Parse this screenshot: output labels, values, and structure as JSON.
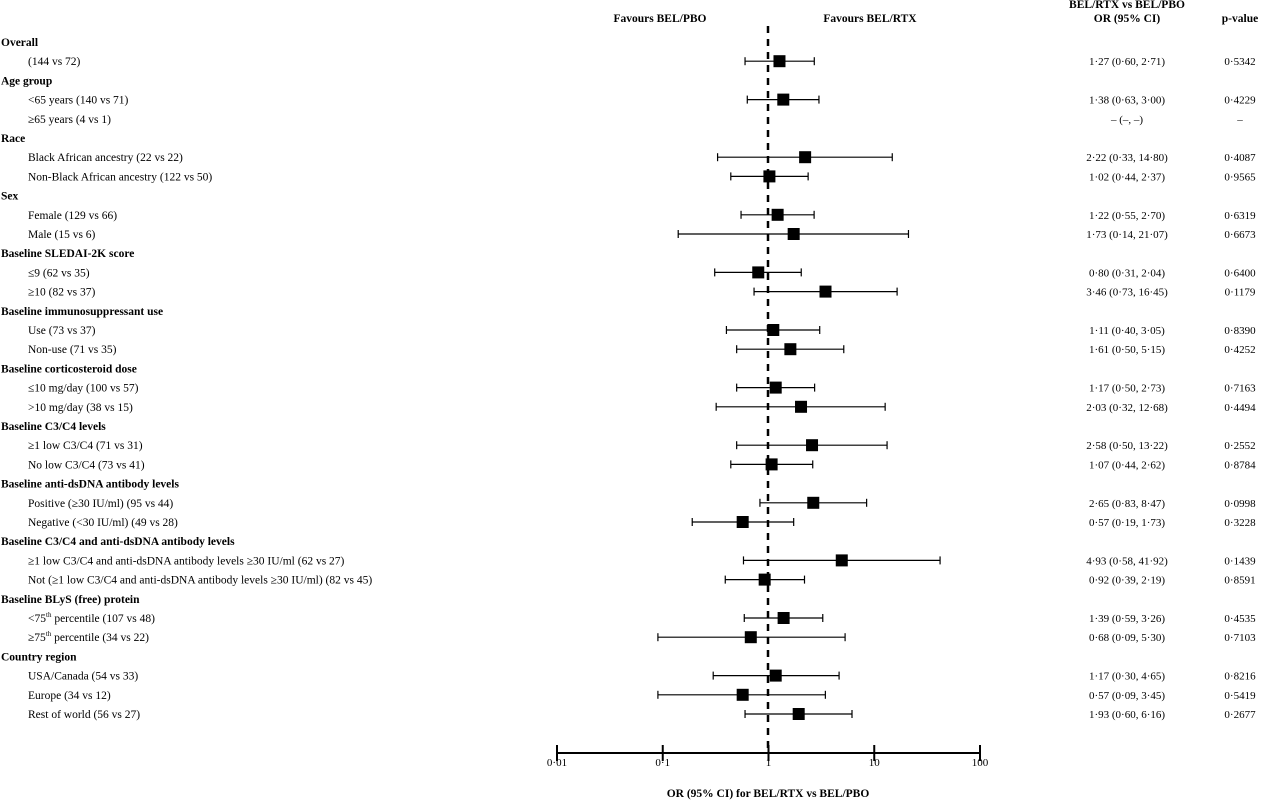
{
  "chart_data": {
    "type": "forest",
    "scale": "log",
    "xlim": [
      0.01,
      100
    ],
    "reference_value": 1,
    "header": {
      "favours_left": "Favours BEL/PBO",
      "favours_right": "Favours BEL/RTX",
      "or_col_line1": "BEL/RTX vs BEL/PBO",
      "or_col_line2": "OR (95% CI)",
      "p_col": "p-value"
    },
    "xticks": [
      0.01,
      0.1,
      1,
      10,
      100
    ],
    "xtick_labels": [
      "0·01",
      "0·1",
      "1",
      "10",
      "100"
    ],
    "xlabel": "OR (95% CI) for BEL/RTX vs BEL/PBO",
    "rows": [
      {
        "kind": "header",
        "label": "Overall"
      },
      {
        "kind": "item",
        "label": "(144 vs 72)",
        "or": 1.27,
        "lo": 0.6,
        "hi": 2.71,
        "or_text": "1·27 (0·60, 2·71)",
        "p": "0·5342"
      },
      {
        "kind": "header",
        "label": "Age group"
      },
      {
        "kind": "item",
        "label": "<65 years (140 vs 71)",
        "or": 1.38,
        "lo": 0.63,
        "hi": 3.0,
        "or_text": "1·38 (0·63, 3·00)",
        "p": "0·4229"
      },
      {
        "kind": "item",
        "label": "≥65 years (4 vs 1)",
        "or": null,
        "lo": null,
        "hi": null,
        "or_text": "– (–, –)",
        "p": "–"
      },
      {
        "kind": "header",
        "label": "Race"
      },
      {
        "kind": "item",
        "label": "Black African ancestry (22 vs 22)",
        "or": 2.22,
        "lo": 0.33,
        "hi": 14.8,
        "or_text": "2·22 (0·33, 14·80)",
        "p": "0·4087"
      },
      {
        "kind": "item",
        "label": "Non-Black African ancestry (122 vs 50)",
        "or": 1.02,
        "lo": 0.44,
        "hi": 2.37,
        "or_text": "1·02 (0·44, 2·37)",
        "p": "0·9565"
      },
      {
        "kind": "header",
        "label": "Sex"
      },
      {
        "kind": "item",
        "label": "Female (129 vs 66)",
        "or": 1.22,
        "lo": 0.55,
        "hi": 2.7,
        "or_text": "1·22 (0·55, 2·70)",
        "p": "0·6319"
      },
      {
        "kind": "item",
        "label": "Male (15 vs 6)",
        "or": 1.73,
        "lo": 0.14,
        "hi": 21.07,
        "or_text": "1·73 (0·14, 21·07)",
        "p": "0·6673"
      },
      {
        "kind": "header",
        "label": "Baseline SLEDAI-2K score"
      },
      {
        "kind": "item",
        "label": "≤9 (62 vs 35)",
        "or": 0.8,
        "lo": 0.31,
        "hi": 2.04,
        "or_text": "0·80 (0·31, 2·04)",
        "p": "0·6400"
      },
      {
        "kind": "item",
        "label": "≥10 (82 vs 37)",
        "or": 3.46,
        "lo": 0.73,
        "hi": 16.45,
        "or_text": "3·46 (0·73, 16·45)",
        "p": "0·1179"
      },
      {
        "kind": "header",
        "label": "Baseline immunosuppressant use"
      },
      {
        "kind": "item",
        "label": "Use (73 vs 37)",
        "or": 1.11,
        "lo": 0.4,
        "hi": 3.05,
        "or_text": "1·11 (0·40, 3·05)",
        "p": "0·8390"
      },
      {
        "kind": "item",
        "label": "Non-use (71 vs 35)",
        "or": 1.61,
        "lo": 0.5,
        "hi": 5.15,
        "or_text": "1·61 (0·50, 5·15)",
        "p": "0·4252"
      },
      {
        "kind": "header",
        "label": "Baseline corticosteroid dose"
      },
      {
        "kind": "item",
        "label": "≤10 mg/day (100 vs 57)",
        "or": 1.17,
        "lo": 0.5,
        "hi": 2.73,
        "or_text": "1·17 (0·50, 2·73)",
        "p": "0·7163"
      },
      {
        "kind": "item",
        "label": ">10 mg/day (38 vs 15)",
        "or": 2.03,
        "lo": 0.32,
        "hi": 12.68,
        "or_text": "2·03 (0·32, 12·68)",
        "p": "0·4494"
      },
      {
        "kind": "header",
        "label": "Baseline C3/C4 levels"
      },
      {
        "kind": "item",
        "label": " ≥1 low C3/C4 (71 vs 31)",
        "or": 2.58,
        "lo": 0.5,
        "hi": 13.22,
        "or_text": "2·58 (0·50, 13·22)",
        "p": "0·2552"
      },
      {
        "kind": "item",
        "label": "No low C3/C4 (73 vs 41)",
        "or": 1.07,
        "lo": 0.44,
        "hi": 2.62,
        "or_text": "1·07 (0·44, 2·62)",
        "p": "0·8784"
      },
      {
        "kind": "header",
        "label": "Baseline anti-dsDNA antibody levels"
      },
      {
        "kind": "item",
        "label": "Positive (≥30 IU/ml) (95 vs 44)",
        "or": 2.65,
        "lo": 0.83,
        "hi": 8.47,
        "or_text": "2·65 (0·83, 8·47)",
        "p": "0·0998"
      },
      {
        "kind": "item",
        "label": "Negative (<30 IU/ml) (49 vs 28)",
        "or": 0.57,
        "lo": 0.19,
        "hi": 1.73,
        "or_text": "0·57 (0·19, 1·73)",
        "p": "0·3228"
      },
      {
        "kind": "header",
        "label": "Baseline C3/C4 and anti-dsDNA antibody levels"
      },
      {
        "kind": "item",
        "label": "≥1 low C3/C4 and anti-dsDNA antibody levels ≥30 IU/ml (62 vs 27)",
        "or": 4.93,
        "lo": 0.58,
        "hi": 41.92,
        "or_text": "4·93 (0·58, 41·92)",
        "p": "0·1439"
      },
      {
        "kind": "item",
        "label": "Not (≥1 low C3/C4 and anti-dsDNA antibody levels ≥30 IU/ml) (82 vs 45)",
        "or": 0.92,
        "lo": 0.39,
        "hi": 2.19,
        "or_text": "0·92 (0·39, 2·19)",
        "p": "0·8591"
      },
      {
        "kind": "header",
        "label": "Baseline BLyS (free) protein"
      },
      {
        "kind": "item",
        "label": "<75",
        "sup": "th",
        "label_rest": " percentile (107 vs 48)",
        "or": 1.39,
        "lo": 0.59,
        "hi": 3.26,
        "or_text": "1·39 (0·59, 3·26)",
        "p": "0·4535"
      },
      {
        "kind": "item",
        "label": "≥75",
        "sup": "th",
        "label_rest": " percentile (34 vs 22)",
        "or": 0.68,
        "lo": 0.09,
        "hi": 5.3,
        "or_text": "0·68 (0·09, 5·30)",
        "p": "0·7103"
      },
      {
        "kind": "header",
        "label": "Country region"
      },
      {
        "kind": "item",
        "label": "USA/Canada (54 vs 33)",
        "or": 1.17,
        "lo": 0.3,
        "hi": 4.65,
        "or_text": "1·17 (0·30, 4·65)",
        "p": "0·8216"
      },
      {
        "kind": "item",
        "label": "Europe (34 vs 12)",
        "or": 0.57,
        "lo": 0.09,
        "hi": 3.45,
        "or_text": "0·57 (0·09, 3·45)",
        "p": "0·5419"
      },
      {
        "kind": "item",
        "label": "Rest of world (56 vs 27)",
        "or": 1.93,
        "lo": 0.6,
        "hi": 6.16,
        "or_text": "1·93 (0·60, 6·16)",
        "p": "0·2677"
      }
    ]
  }
}
